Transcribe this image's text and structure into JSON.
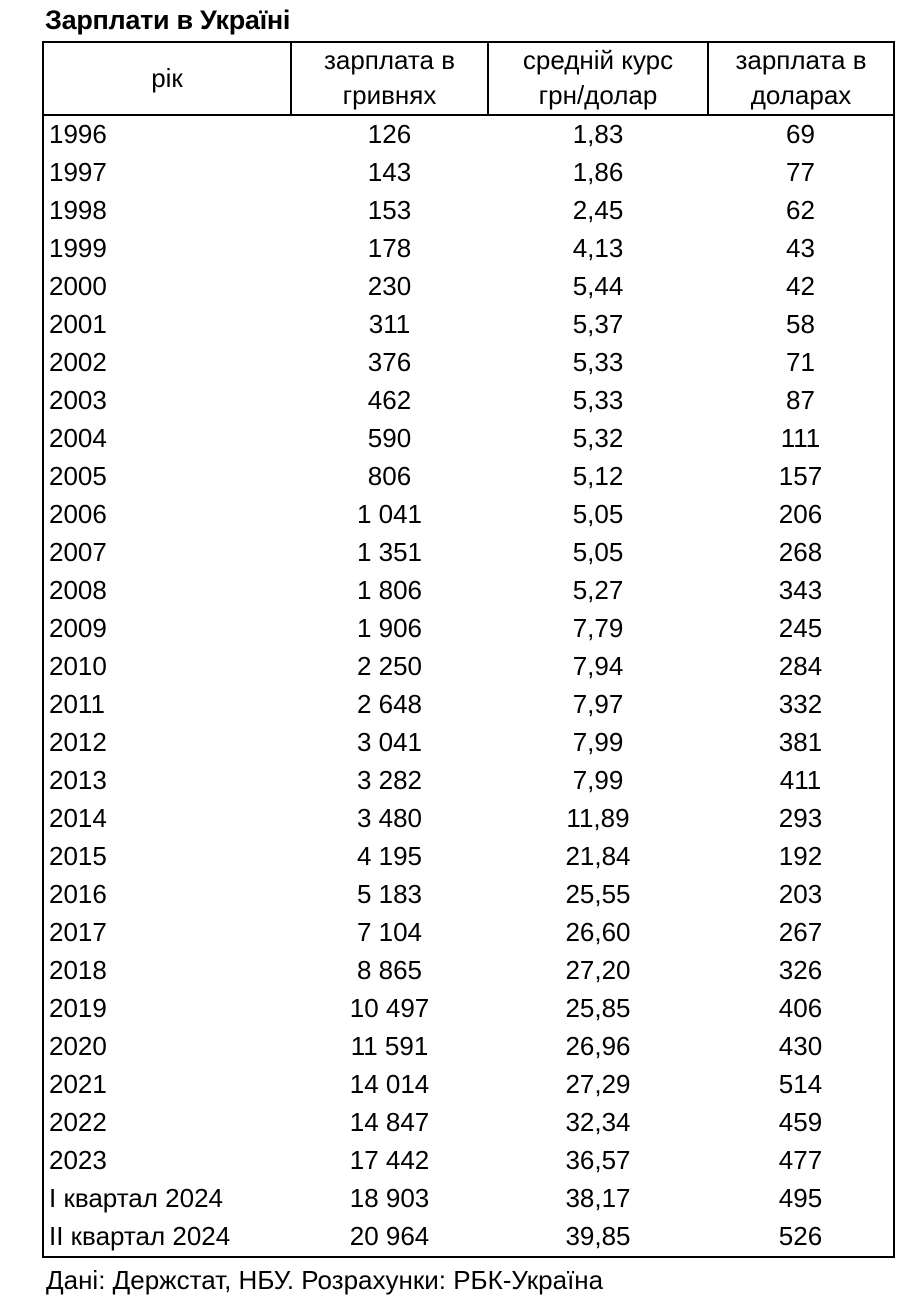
{
  "chart_data": {
    "type": "table",
    "title": "Зарплати в Україні",
    "columns": [
      "рік",
      "зарплата в гривнях",
      "средній курс грн/долар",
      "зарплата в доларах"
    ],
    "header_lines": [
      [
        "рік",
        ""
      ],
      [
        "зарплата в",
        "гривнях"
      ],
      [
        "средній курс",
        "грн/долар"
      ],
      [
        "зарплата в",
        "доларах"
      ]
    ],
    "rows": [
      [
        "1996",
        "126",
        "1,83",
        "69"
      ],
      [
        "1997",
        "143",
        "1,86",
        "77"
      ],
      [
        "1998",
        "153",
        "2,45",
        "62"
      ],
      [
        "1999",
        "178",
        "4,13",
        "43"
      ],
      [
        "2000",
        "230",
        "5,44",
        "42"
      ],
      [
        "2001",
        "311",
        "5,37",
        "58"
      ],
      [
        "2002",
        "376",
        "5,33",
        "71"
      ],
      [
        "2003",
        "462",
        "5,33",
        "87"
      ],
      [
        "2004",
        "590",
        "5,32",
        "111"
      ],
      [
        "2005",
        "806",
        "5,12",
        "157"
      ],
      [
        "2006",
        "1 041",
        "5,05",
        "206"
      ],
      [
        "2007",
        "1 351",
        "5,05",
        "268"
      ],
      [
        "2008",
        "1 806",
        "5,27",
        "343"
      ],
      [
        "2009",
        "1 906",
        "7,79",
        "245"
      ],
      [
        "2010",
        "2 250",
        "7,94",
        "284"
      ],
      [
        "2011",
        "2 648",
        "7,97",
        "332"
      ],
      [
        "2012",
        "3 041",
        "7,99",
        "381"
      ],
      [
        "2013",
        "3 282",
        "7,99",
        "411"
      ],
      [
        "2014",
        "3 480",
        "11,89",
        "293"
      ],
      [
        "2015",
        "4 195",
        "21,84",
        "192"
      ],
      [
        "2016",
        "5 183",
        "25,55",
        "203"
      ],
      [
        "2017",
        "7 104",
        "26,60",
        "267"
      ],
      [
        "2018",
        "8 865",
        "27,20",
        "326"
      ],
      [
        "2019",
        "10 497",
        "25,85",
        "406"
      ],
      [
        "2020",
        "11 591",
        "26,96",
        "430"
      ],
      [
        "2021",
        "14 014",
        "27,29",
        "514"
      ],
      [
        "2022",
        "14 847",
        "32,34",
        "459"
      ],
      [
        "2023",
        "17 442",
        "36,57",
        "477"
      ],
      [
        "І квартал 2024",
        "18 903",
        "38,17",
        "495"
      ],
      [
        "ІІ квартал 2024",
        "20 964",
        "39,85",
        "526"
      ]
    ],
    "source": "Дані: Держстат, НБУ. Розрахунки: РБК-Україна",
    "text_color": "#000000",
    "background_color": "#ffffff",
    "border_color": "#000000"
  }
}
